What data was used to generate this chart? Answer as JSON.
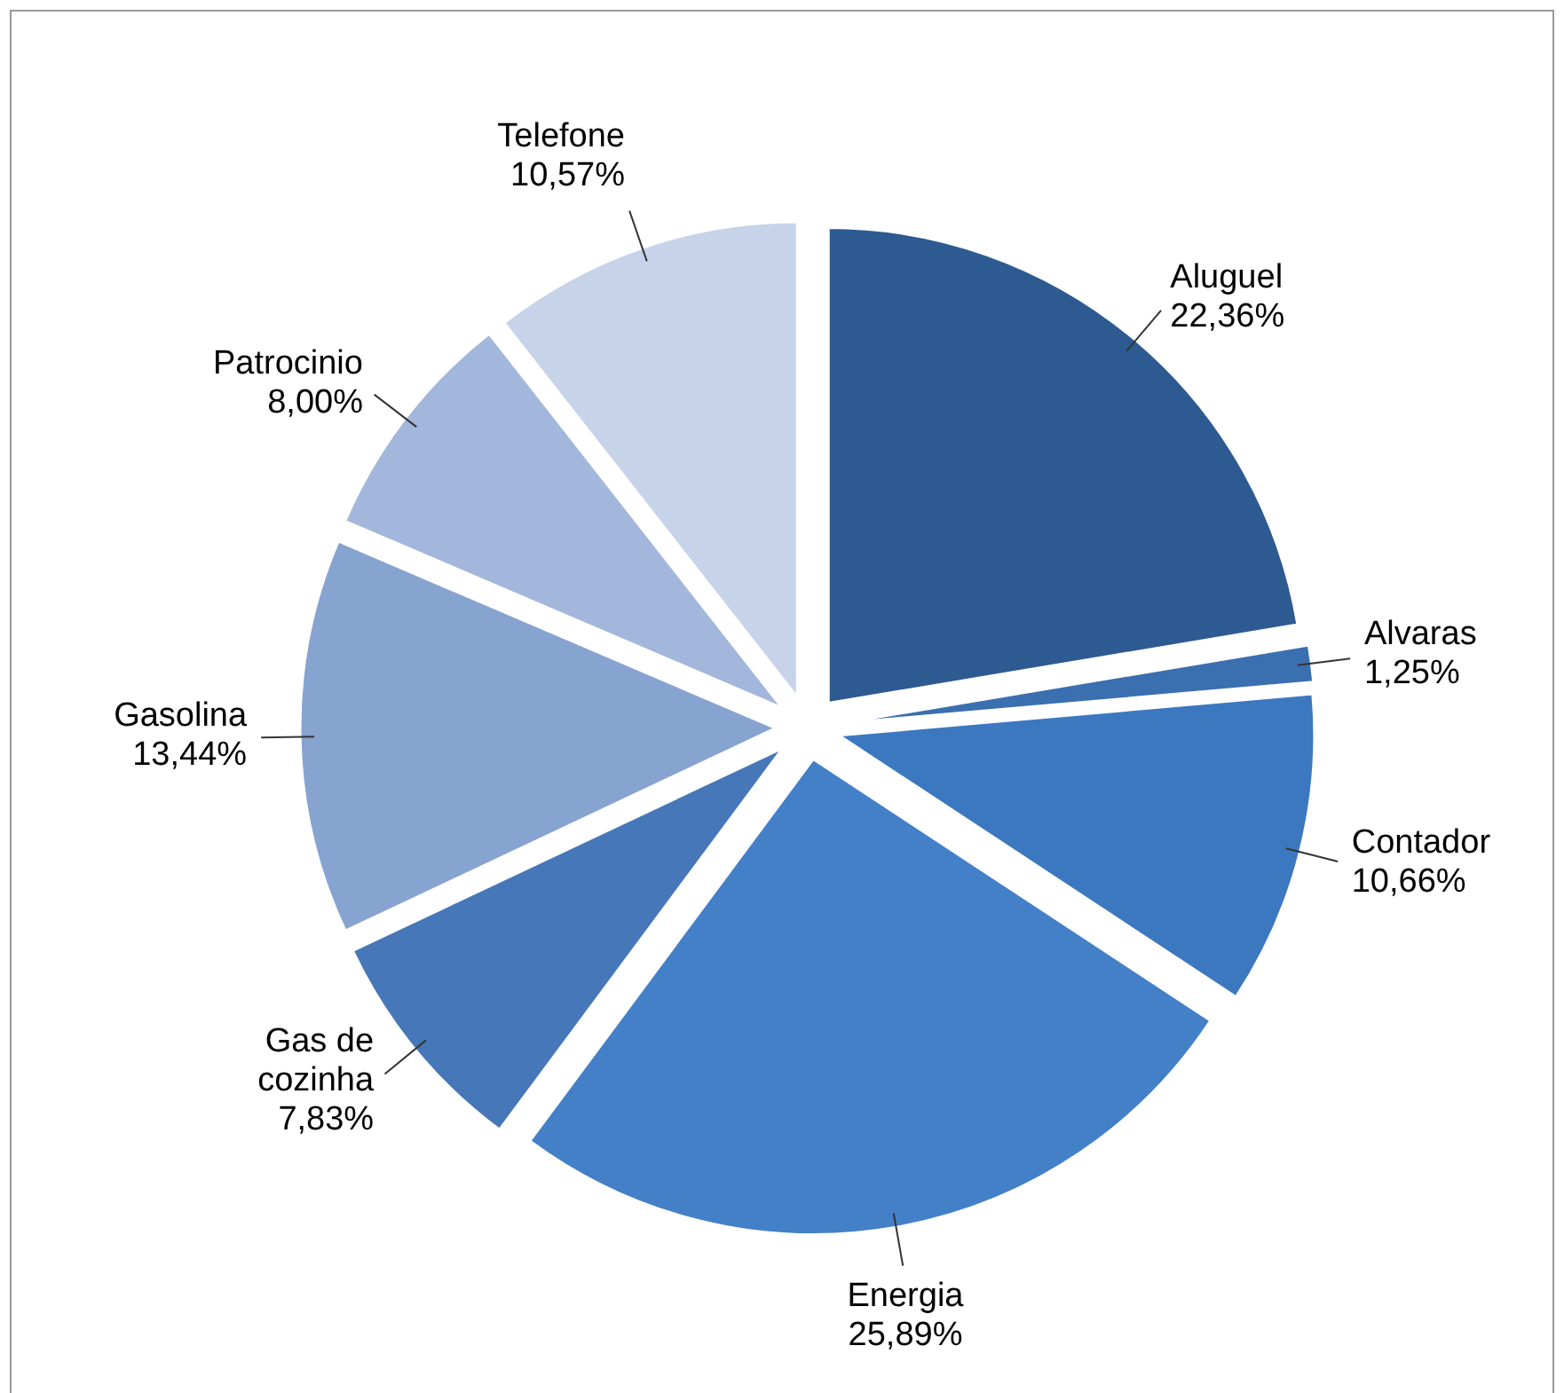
{
  "chart_data": {
    "type": "pie",
    "categories": [
      "Aluguel",
      "Alvaras",
      "Contador",
      "Energia",
      "Gas de cozinha",
      "Gasolina",
      "Patrocinio",
      "Telefone"
    ],
    "values": [
      22.36,
      1.25,
      10.66,
      25.89,
      7.83,
      13.44,
      8.0,
      10.57
    ],
    "value_labels": [
      "22,36%",
      "1,25%",
      "10,66%",
      "25,89%",
      "7,83%",
      "13,44%",
      "8,00%",
      "10,57%"
    ],
    "colors": [
      "#2d5a91",
      "#3a6fb0",
      "#3c78c0",
      "#4380c8",
      "#4677b8",
      "#87a3d0",
      "#a2b7db",
      "#c6d3e9"
    ],
    "legend": false
  }
}
